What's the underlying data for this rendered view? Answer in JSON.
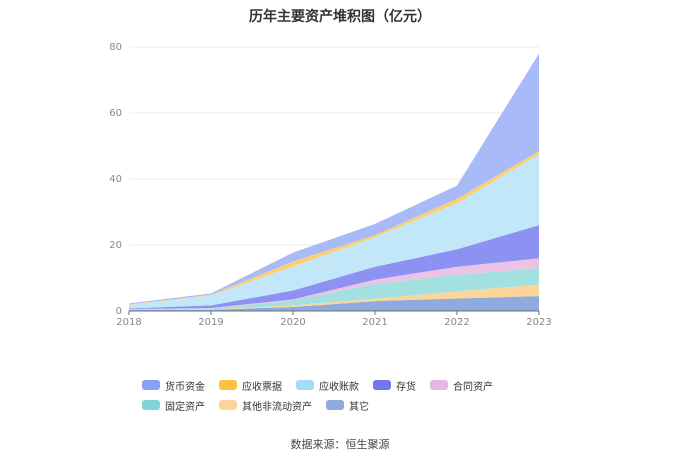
{
  "chart_data": {
    "type": "area",
    "stacked": true,
    "title": "历年主要资产堆积图（亿元）",
    "categories": [
      "2018",
      "2019",
      "2020",
      "2021",
      "2022",
      "2023"
    ],
    "ylim": [
      0,
      80
    ],
    "yticks": [
      0,
      20,
      40,
      60,
      80
    ],
    "grid": true,
    "legend_position": "bottom",
    "series": [
      {
        "name": "其它",
        "color": "#8faadc",
        "values": [
          0.3,
          0.4,
          1.2,
          3.0,
          3.8,
          4.5
        ]
      },
      {
        "name": "其他非流动资产",
        "color": "#fcd59b",
        "values": [
          0.1,
          0.1,
          0.5,
          0.7,
          2.2,
          3.5
        ]
      },
      {
        "name": "固定资产",
        "color": "#a3e1e1",
        "values": [
          0.2,
          0.3,
          1.5,
          4.5,
          5.0,
          5.0
        ]
      },
      {
        "name": "合同资产",
        "color": "#ecc3e7",
        "values": [
          0.0,
          0.1,
          0.3,
          1.3,
          2.4,
          3.0
        ]
      },
      {
        "name": "存货",
        "color": "#8c91f2",
        "values": [
          0.2,
          0.8,
          2.7,
          3.9,
          5.3,
          10.0
        ]
      },
      {
        "name": "应收账款",
        "color": "#c2e7f9",
        "values": [
          1.1,
          3.0,
          7.3,
          9.0,
          14.0,
          21.5
        ]
      },
      {
        "name": "应收票据",
        "color": "#fcd06e",
        "values": [
          0.1,
          0.2,
          1.5,
          0.6,
          1.3,
          1.0
        ]
      },
      {
        "name": "货币资金",
        "color": "#a8baf8",
        "values": [
          0.3,
          0.4,
          2.7,
          3.4,
          4.0,
          29.5
        ]
      }
    ]
  },
  "legend": [
    {
      "name": "货币资金",
      "color": "#86a1f5"
    },
    {
      "name": "应收票据",
      "color": "#fbc33c"
    },
    {
      "name": "应收账款",
      "color": "#a6dbf8"
    },
    {
      "name": "存货",
      "color": "#7575ee"
    },
    {
      "name": "合同资产",
      "color": "#e8b6e2"
    },
    {
      "name": "固定资产",
      "color": "#7fd6d6"
    },
    {
      "name": "其他非流动资产",
      "color": "#fcd59b"
    },
    {
      "name": "其它",
      "color": "#8faadc"
    }
  ],
  "source": "数据来源：恒生聚源"
}
